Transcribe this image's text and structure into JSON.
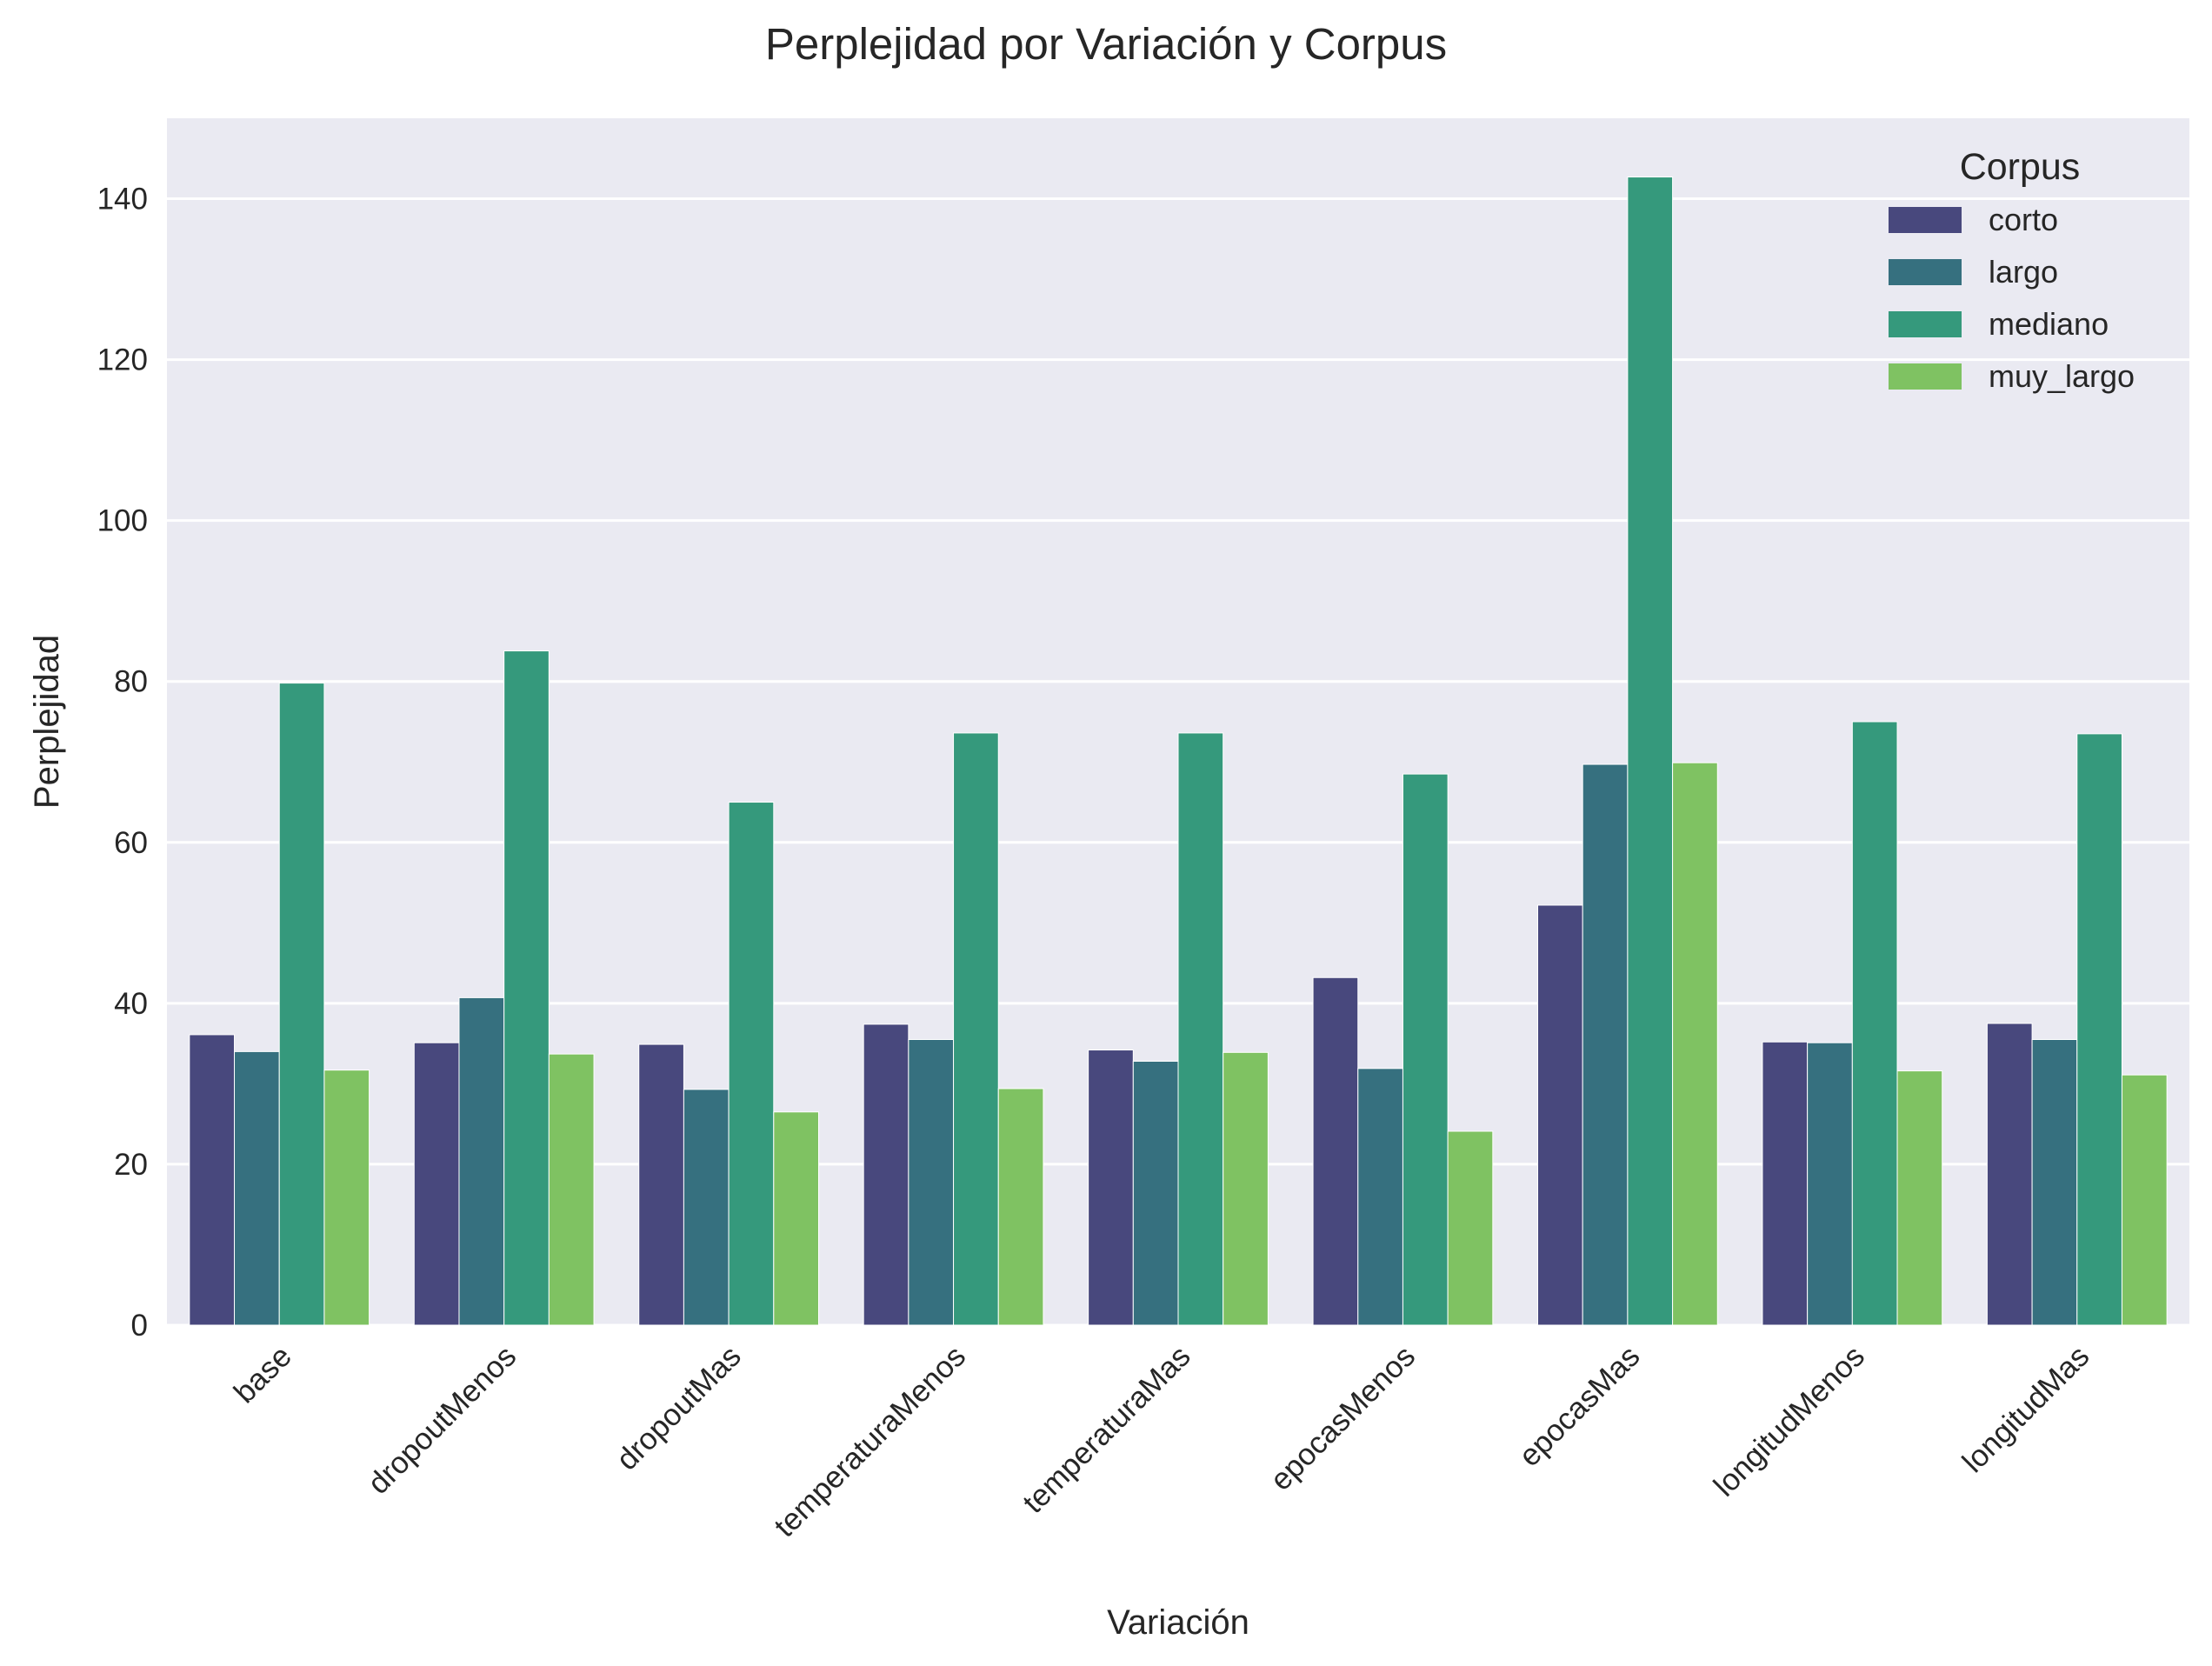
{
  "chart_data": {
    "type": "bar",
    "title": "Perplejidad por Variación y Corpus",
    "xlabel": "Variación",
    "ylabel": "Perplejidad",
    "ylim": [
      0,
      150
    ],
    "yticks": [
      0,
      20,
      40,
      60,
      80,
      100,
      120,
      140
    ],
    "grid": true,
    "legend": {
      "title": "Corpus",
      "placement": "top-right"
    },
    "categories": [
      "base",
      "dropoutMenos",
      "dropoutMas",
      "temperaturaMenos",
      "temperaturaMas",
      "epocasMenos",
      "epocasMas",
      "longitudMenos",
      "longitudMas"
    ],
    "series": [
      {
        "name": "corto",
        "color": "#48487d",
        "values": [
          36.1,
          35.1,
          34.9,
          37.4,
          34.2,
          43.2,
          52.2,
          35.2,
          37.5
        ]
      },
      {
        "name": "largo",
        "color": "#36707f",
        "values": [
          34.0,
          40.7,
          29.3,
          35.5,
          32.8,
          31.9,
          69.7,
          35.1,
          35.5
        ]
      },
      {
        "name": "mediano",
        "color": "#35997c",
        "values": [
          79.8,
          83.8,
          65.0,
          73.6,
          73.6,
          68.5,
          142.7,
          75.0,
          73.5
        ]
      },
      {
        "name": "muy_largo",
        "color": "#7fc262",
        "values": [
          31.7,
          33.7,
          26.5,
          29.4,
          33.9,
          24.1,
          69.9,
          31.6,
          31.1
        ]
      }
    ]
  }
}
